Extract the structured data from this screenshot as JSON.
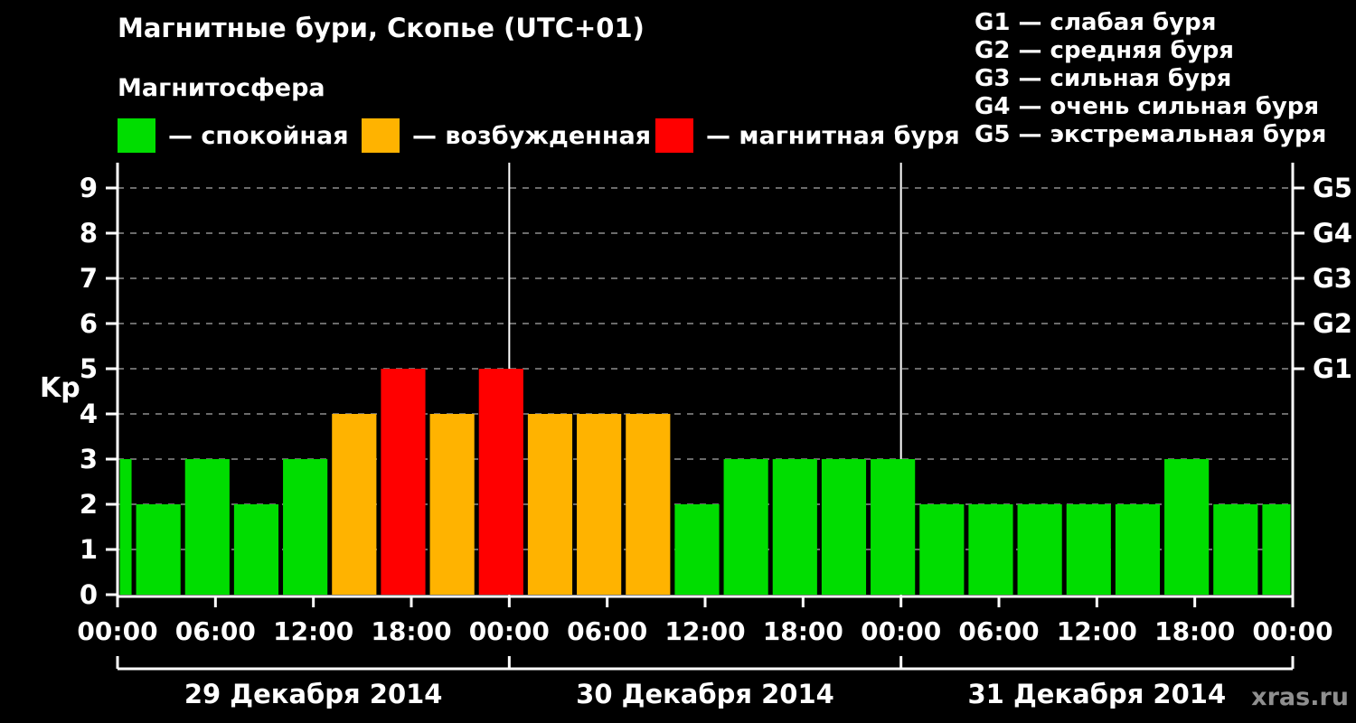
{
  "title": "Магнитные бури, Скопье (UTC+01)",
  "subtitle": "Магнитосфера",
  "legend": {
    "items": [
      {
        "label": "— спокойная",
        "color": "#00dd00"
      },
      {
        "label": "— возбужденная",
        "color": "#ffb300"
      },
      {
        "label": "— магнитная буря",
        "color": "#ff0000"
      }
    ]
  },
  "storm_scale_legend": [
    "G1 — слабая буря",
    "G2 — средняя буря",
    "G3 — сильная буря",
    "G4 — очень сильная буря",
    "G5 — экстремальная буря"
  ],
  "watermark": "xras.ru",
  "chart_data": {
    "type": "bar",
    "title": "Магнитные бури, Скопье (UTC+01)",
    "ylabel": "Kp",
    "ylim": [
      0,
      9.4
    ],
    "y_ticks": [
      0,
      1,
      2,
      3,
      4,
      5,
      6,
      7,
      8,
      9
    ],
    "x_total_hours": 72,
    "x_tick_interval_hours": 6,
    "x_tick_labels": [
      "00:00",
      "06:00",
      "12:00",
      "18:00",
      "00:00",
      "06:00",
      "12:00",
      "18:00",
      "00:00",
      "06:00",
      "12:00",
      "18:00",
      "00:00"
    ],
    "day_boundaries_hours": [
      24,
      48
    ],
    "dates": [
      "29 Декабря 2014",
      "30 Декабря 2014",
      "31 Декабря 2014"
    ],
    "right_axis": [
      {
        "kp": 5,
        "label": "G1"
      },
      {
        "kp": 6,
        "label": "G2"
      },
      {
        "kp": 7,
        "label": "G3"
      },
      {
        "kp": 8,
        "label": "G4"
      },
      {
        "kp": 9,
        "label": "G5"
      }
    ],
    "levels": {
      "quiet": {
        "label": "спокойная",
        "color": "#00dd00"
      },
      "unsettled": {
        "label": "возбужденная",
        "color": "#ffb300"
      },
      "storm": {
        "label": "магнитная буря",
        "color": "#ff0000"
      }
    },
    "grid": {
      "horizontal": "dashed",
      "color": "#6b6b6b"
    },
    "bars": [
      {
        "start_hour": 0,
        "end_hour": 1,
        "kp": 3,
        "level": "quiet"
      },
      {
        "start_hour": 1,
        "end_hour": 4,
        "kp": 2,
        "level": "quiet"
      },
      {
        "start_hour": 4,
        "end_hour": 7,
        "kp": 3,
        "level": "quiet"
      },
      {
        "start_hour": 7,
        "end_hour": 10,
        "kp": 2,
        "level": "quiet"
      },
      {
        "start_hour": 10,
        "end_hour": 13,
        "kp": 3,
        "level": "quiet"
      },
      {
        "start_hour": 13,
        "end_hour": 16,
        "kp": 4,
        "level": "unsettled"
      },
      {
        "start_hour": 16,
        "end_hour": 19,
        "kp": 5,
        "level": "storm"
      },
      {
        "start_hour": 19,
        "end_hour": 22,
        "kp": 4,
        "level": "unsettled"
      },
      {
        "start_hour": 22,
        "end_hour": 25,
        "kp": 5,
        "level": "storm"
      },
      {
        "start_hour": 25,
        "end_hour": 28,
        "kp": 4,
        "level": "unsettled"
      },
      {
        "start_hour": 28,
        "end_hour": 31,
        "kp": 4,
        "level": "unsettled"
      },
      {
        "start_hour": 31,
        "end_hour": 34,
        "kp": 4,
        "level": "unsettled"
      },
      {
        "start_hour": 34,
        "end_hour": 37,
        "kp": 2,
        "level": "quiet"
      },
      {
        "start_hour": 37,
        "end_hour": 40,
        "kp": 3,
        "level": "quiet"
      },
      {
        "start_hour": 40,
        "end_hour": 43,
        "kp": 3,
        "level": "quiet"
      },
      {
        "start_hour": 43,
        "end_hour": 46,
        "kp": 3,
        "level": "quiet"
      },
      {
        "start_hour": 46,
        "end_hour": 49,
        "kp": 3,
        "level": "quiet"
      },
      {
        "start_hour": 49,
        "end_hour": 52,
        "kp": 2,
        "level": "quiet"
      },
      {
        "start_hour": 52,
        "end_hour": 55,
        "kp": 2,
        "level": "quiet"
      },
      {
        "start_hour": 55,
        "end_hour": 58,
        "kp": 2,
        "level": "quiet"
      },
      {
        "start_hour": 58,
        "end_hour": 61,
        "kp": 2,
        "level": "quiet"
      },
      {
        "start_hour": 61,
        "end_hour": 64,
        "kp": 2,
        "level": "quiet"
      },
      {
        "start_hour": 64,
        "end_hour": 67,
        "kp": 3,
        "level": "quiet"
      },
      {
        "start_hour": 67,
        "end_hour": 70,
        "kp": 2,
        "level": "quiet"
      },
      {
        "start_hour": 70,
        "end_hour": 72,
        "kp": 2,
        "level": "quiet"
      }
    ]
  }
}
